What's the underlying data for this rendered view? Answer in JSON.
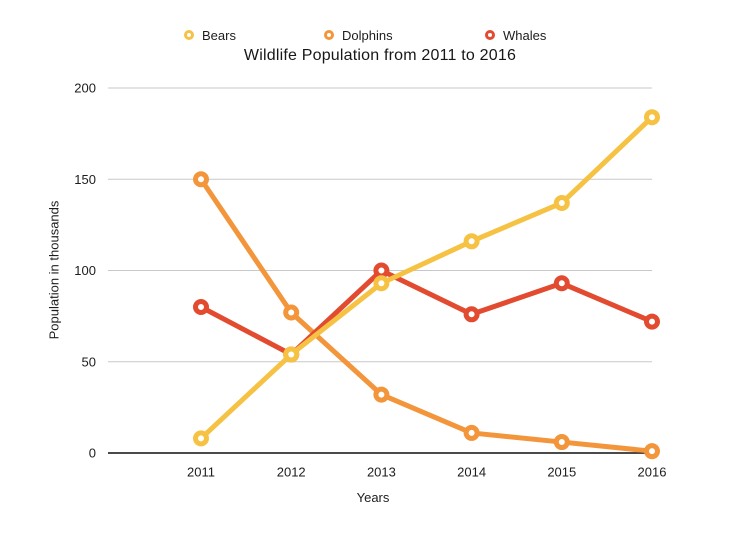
{
  "chart_data": {
    "type": "line",
    "title": "Wildlife Population from 2011 to 2016",
    "xlabel": "Years",
    "ylabel": "Population in thousands",
    "categories": [
      "2011",
      "2012",
      "2013",
      "2014",
      "2015",
      "2016"
    ],
    "series": [
      {
        "name": "Bears",
        "color": "#F6C244",
        "values": [
          8,
          54,
          93,
          116,
          137,
          184
        ]
      },
      {
        "name": "Dolphins",
        "color": "#F2953B",
        "values": [
          150,
          77,
          32,
          11,
          6,
          1
        ]
      },
      {
        "name": "Whales",
        "color": "#E24B2F",
        "values": [
          80,
          54,
          100,
          76,
          93,
          72
        ]
      }
    ],
    "ylim": [
      0,
      200
    ],
    "yticks": [
      0,
      50,
      100,
      150,
      200
    ],
    "grid": true,
    "legend_position": "top",
    "gridline_color": "#C8C8C8",
    "axis_line_color": "#303030",
    "marker_style": "ring",
    "background_color": "#FFFFFF"
  }
}
